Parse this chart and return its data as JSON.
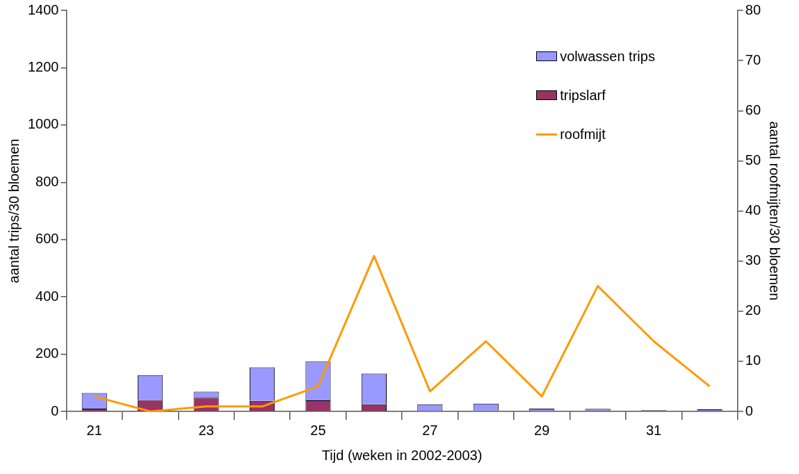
{
  "chart_data": {
    "type": "bar",
    "stacked": true,
    "xlabel": "Tijd (weken in 2002-2003)",
    "ylabel": "aantal trips/30 bloemen",
    "y2label": "aantal roofmijten/30 bloemen",
    "categories": [
      "21",
      null,
      "23",
      null,
      "25",
      null,
      "27",
      null,
      "29",
      null,
      "31",
      null
    ],
    "series": [
      {
        "name": "tripslarf",
        "color": "#993366",
        "values": [
          10,
          40,
          48,
          37,
          39,
          25,
          1,
          3,
          1,
          0,
          4,
          null
        ]
      },
      {
        "name": "volwassen trips",
        "color": "#9999ff",
        "values": [
          54,
          87,
          21,
          117,
          135,
          107,
          24,
          24,
          9,
          9,
          null,
          7
        ]
      },
      {
        "name": "roofmijt",
        "type": "line",
        "axis": "y2",
        "color": "#ff9900",
        "values": [
          3,
          0,
          1,
          1,
          5,
          31,
          4,
          14,
          3,
          25,
          14,
          5
        ]
      }
    ],
    "ylim": [
      0,
      1400
    ],
    "yticks": [
      0,
      200,
      400,
      600,
      800,
      1000,
      1200,
      1400
    ],
    "y2lim": [
      0,
      80
    ],
    "y2ticks": [
      0,
      10,
      20,
      30,
      40,
      50,
      60,
      70,
      80
    ],
    "grid": false,
    "legend": "top right",
    "marker": "none"
  }
}
